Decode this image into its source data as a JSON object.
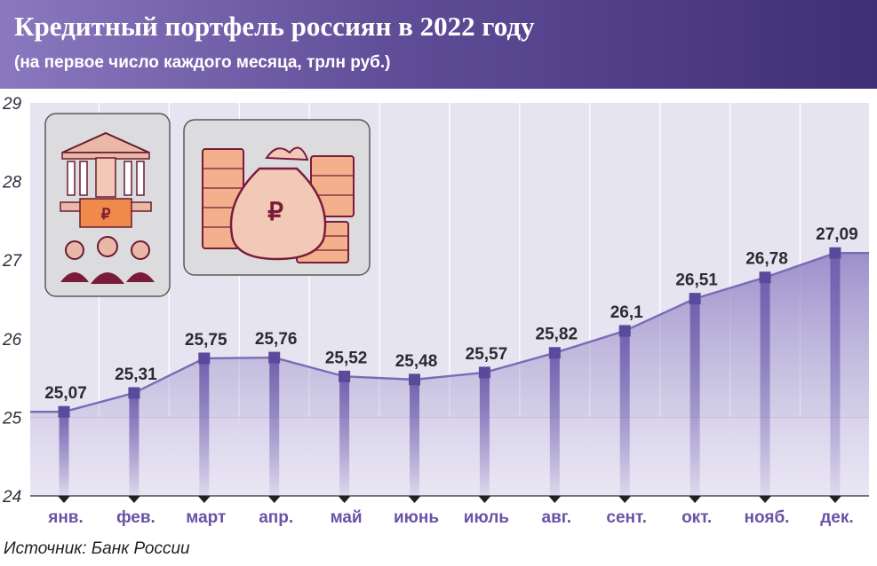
{
  "header": {
    "title": "Кредитный портфель россиян в 2022 году",
    "subtitle": "(на первое число каждого месяца, трлн руб.)"
  },
  "source": "Источник: Банк России",
  "icons": {
    "bank_panel": [
      "bank-building-icon",
      "hand-with-ruble-banknote-icon",
      "people-group-icon"
    ],
    "money_panel": [
      "ruble-money-bag-icon",
      "banknote-stacks-icon"
    ],
    "money_bag_symbol": "₽"
  },
  "colors": {
    "header_start": "#8a79bf",
    "header_end": "#3f2f76",
    "plot_background": "#e6e4f0",
    "series_line": "#7c6ab4",
    "marker": "#5a4a9c",
    "area_fill": "#8e80c4",
    "category_text": "#6a52a6",
    "icon_accent": "#7b1b3b"
  },
  "chart_data": {
    "type": "area",
    "categories": [
      "янв.",
      "фев.",
      "март",
      "апр.",
      "май",
      "июнь",
      "июль",
      "авг.",
      "сент.",
      "окт.",
      "нояб.",
      "дек."
    ],
    "values": [
      25.07,
      25.31,
      25.75,
      25.76,
      25.52,
      25.48,
      25.57,
      25.82,
      26.1,
      26.51,
      26.78,
      27.09
    ],
    "value_labels": [
      "25,07",
      "25,31",
      "25,75",
      "25,76",
      "25,52",
      "25,48",
      "25,57",
      "25,82",
      "26,1",
      "26,51",
      "26,78",
      "27,09"
    ],
    "ylim": [
      24,
      29
    ],
    "yticks": [
      "24",
      "25",
      "26",
      "27",
      "28",
      "29"
    ],
    "grid": "vertical",
    "title": "Кредитный портфель россиян в 2022 году",
    "xlabel": "",
    "ylabel": ""
  }
}
